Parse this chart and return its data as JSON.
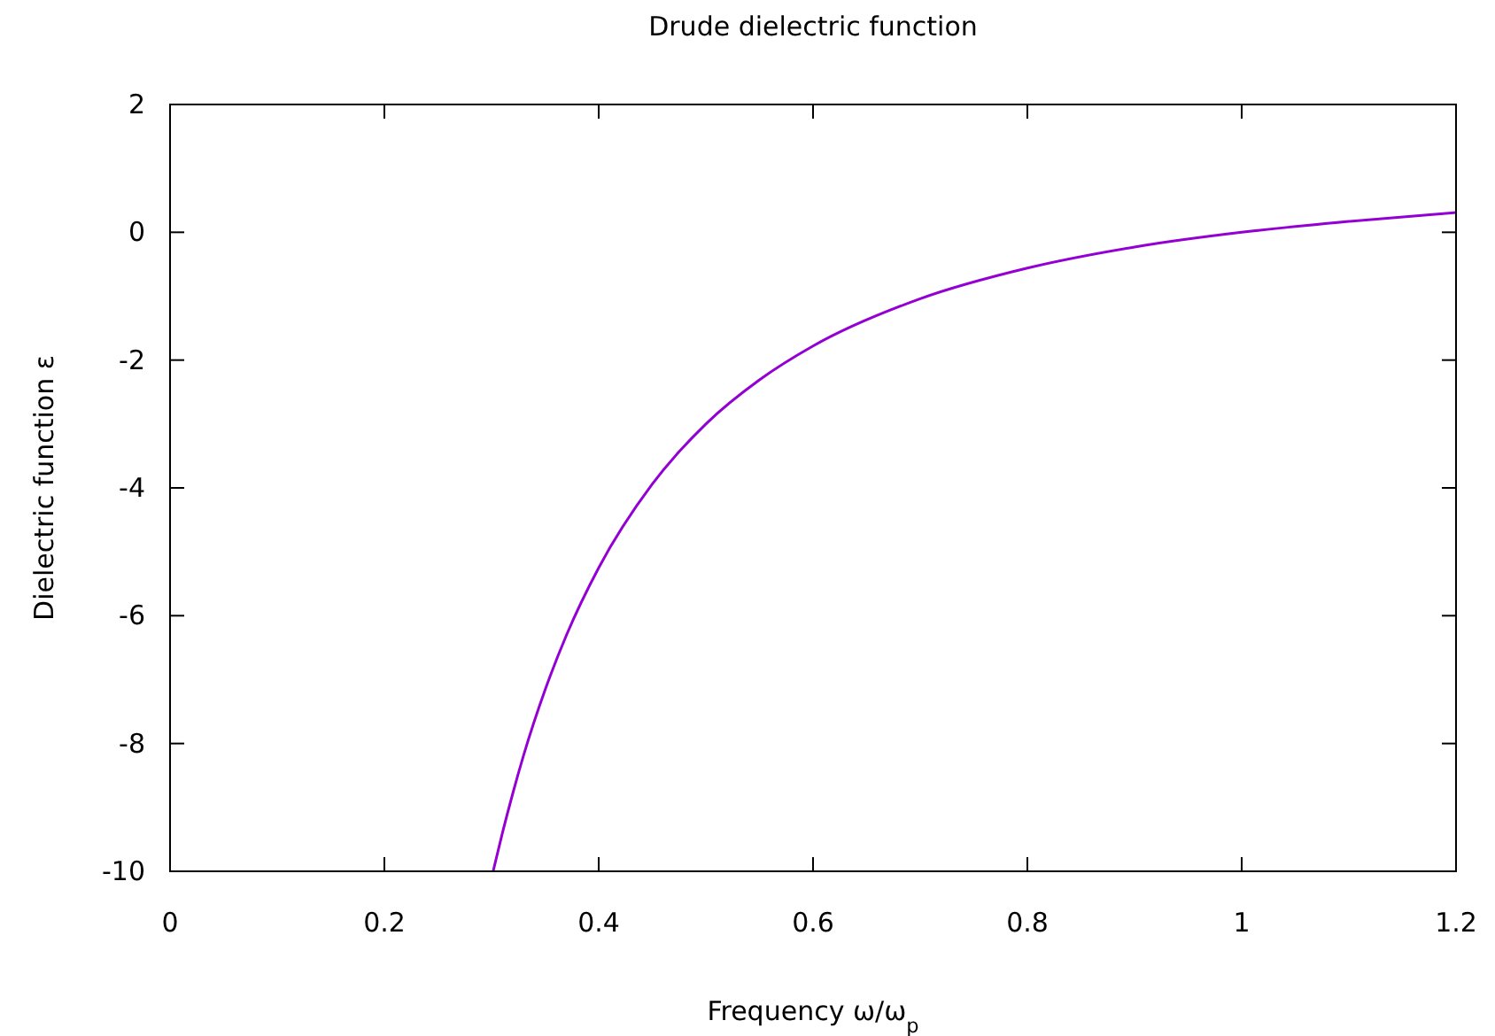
{
  "chart_data": {
    "type": "line",
    "title": "Drude dielectric function",
    "xlabel": "Frequency ω/ω$_{p}$",
    "ylabel": "Dielectric function ε",
    "xlim": [
      0,
      1.2
    ],
    "ylim": [
      -10,
      2
    ],
    "xticks": [
      0,
      0.2,
      0.4,
      0.6,
      0.8,
      1,
      1.2
    ],
    "yticks": [
      -10,
      -8,
      -6,
      -4,
      -2,
      0,
      2
    ],
    "x": [
      0.3015,
      0.31,
      0.32,
      0.33,
      0.35,
      0.37,
      0.4,
      0.45,
      0.5,
      0.55,
      0.6,
      0.7,
      0.8,
      0.9,
      1.0,
      1.1,
      1.2
    ],
    "series": [
      {
        "color": "#9400d3",
        "values": [
          -10.0,
          -9.41,
          -8.77,
          -8.18,
          -7.16,
          -6.3,
          -5.25,
          -3.94,
          -3.0,
          -2.31,
          -1.78,
          -1.04,
          -0.56,
          -0.23,
          0.0,
          0.17,
          0.31
        ]
      }
    ],
    "grid": false,
    "marker": "none",
    "line_style": "solid"
  }
}
